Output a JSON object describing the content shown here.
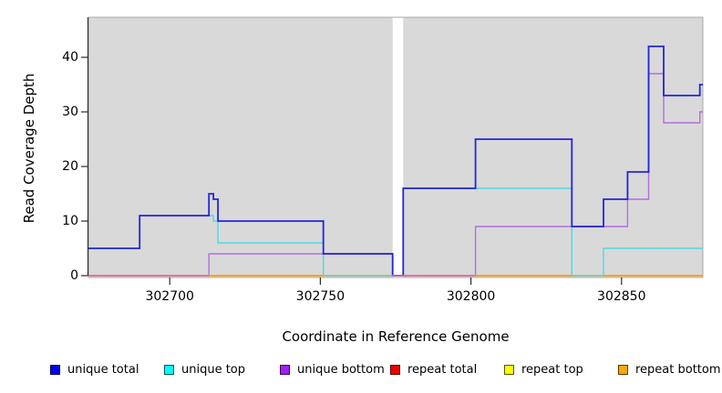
{
  "chart_data": {
    "type": "line",
    "subtype": "step-coverage",
    "title": "",
    "xlabel": "Coordinate in Reference Genome",
    "ylabel": "Read Coverage Depth",
    "xlim": [
      302673,
      302877
    ],
    "ylim": [
      0,
      47.3
    ],
    "x_ticks": [
      {
        "value": 302700,
        "label": "302700"
      },
      {
        "value": 302750,
        "label": "302750"
      },
      {
        "value": 302800,
        "label": "302800"
      },
      {
        "value": 302850,
        "label": "302850"
      }
    ],
    "y_ticks": [
      {
        "value": 0,
        "label": "0"
      },
      {
        "value": 10,
        "label": "10"
      },
      {
        "value": 20,
        "label": "20"
      },
      {
        "value": 30,
        "label": "30"
      },
      {
        "value": 40,
        "label": "40"
      }
    ],
    "grid": false,
    "legend_position": "bottom",
    "panel_bg": "#d9d9d9",
    "panel_border": "#a9a9a9",
    "axis_color": "#2b2b2b",
    "gap_band": {
      "x_start": 302774,
      "x_end": 302777.5,
      "color": "#ffffff",
      "note": "vertical white band, no coverage data"
    },
    "series": [
      {
        "name": "repeat top",
        "line_color": "#ffff00",
        "steps": [
          [
            302673,
            0
          ],
          [
            302877,
            0
          ]
        ]
      },
      {
        "name": "repeat bottom",
        "line_color": "#ffa500",
        "steps": [
          [
            302673,
            0
          ],
          [
            302877,
            0
          ]
        ]
      },
      {
        "name": "repeat total",
        "line_color": "#e2729c",
        "steps": [
          [
            302673,
            0
          ],
          [
            302877,
            0
          ]
        ]
      },
      {
        "name": "unique bottom",
        "line_color": "#b06fdd",
        "steps": [
          [
            302673,
            0
          ],
          [
            302713,
            4
          ],
          [
            302774,
            0
          ],
          [
            302801.5,
            9
          ],
          [
            302852,
            14
          ],
          [
            302859,
            37
          ],
          [
            302864,
            28
          ],
          [
            302876,
            30
          ],
          [
            302877,
            30
          ]
        ]
      },
      {
        "name": "unique top",
        "line_color": "#52d7e3",
        "steps": [
          [
            302673,
            5
          ],
          [
            302690,
            11
          ],
          [
            302714.5,
            10
          ],
          [
            302716,
            6
          ],
          [
            302751,
            0
          ],
          [
            302777.5,
            16
          ],
          [
            302833.5,
            0
          ],
          [
            302844,
            5
          ],
          [
            302877,
            5
          ]
        ]
      },
      {
        "name": "unique total",
        "line_color": "#2323dc",
        "steps": [
          [
            302673,
            5
          ],
          [
            302690,
            11
          ],
          [
            302713,
            15
          ],
          [
            302714.5,
            14
          ],
          [
            302716,
            10
          ],
          [
            302751,
            4
          ],
          [
            302774,
            0
          ],
          [
            302777.5,
            16
          ],
          [
            302801.5,
            25
          ],
          [
            302833.5,
            9
          ],
          [
            302844,
            14
          ],
          [
            302852,
            19
          ],
          [
            302859,
            42
          ],
          [
            302864,
            33
          ],
          [
            302876,
            35
          ],
          [
            302877,
            35
          ]
        ]
      }
    ],
    "baseline_segments": [
      {
        "x_start": 302673,
        "x_end": 302713,
        "color": "#e2729c"
      },
      {
        "x_start": 302713,
        "x_end": 302751,
        "color": "#ffa500"
      },
      {
        "x_start": 302751,
        "x_end": 302774,
        "color": "#90ce9a"
      },
      {
        "x_start": 302774,
        "x_end": 302801.5,
        "color": "#e2729c"
      },
      {
        "x_start": 302801.5,
        "x_end": 302833.5,
        "color": "#ffa500"
      },
      {
        "x_start": 302833.5,
        "x_end": 302844,
        "color": "#90ce9a"
      },
      {
        "x_start": 302844,
        "x_end": 302877,
        "color": "#ffa500"
      }
    ]
  },
  "legend": {
    "items": [
      {
        "label": "unique total",
        "color": "#0000f0"
      },
      {
        "label": "unique top",
        "color": "#00ffff"
      },
      {
        "label": "unique bottom",
        "color": "#a020f0"
      },
      {
        "label": "repeat total",
        "color": "#ee0000"
      },
      {
        "label": "repeat top",
        "color": "#ffff00"
      },
      {
        "label": "repeat bottom",
        "color": "#ffa500"
      }
    ]
  }
}
